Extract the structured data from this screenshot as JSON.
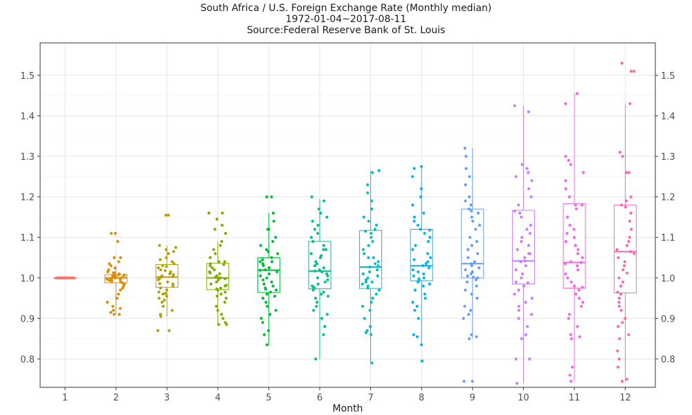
{
  "chart_data": {
    "type": "box",
    "title": "South Africa / U.S. Foreign Exchange Rate (Monthly median)",
    "subtitle": "1972-01-04~2017-08-11",
    "source": "Source:Federal Reserve Bank of St. Louis",
    "xlabel": "Month",
    "ylabel": "",
    "categories": [
      "1",
      "2",
      "3",
      "4",
      "5",
      "6",
      "7",
      "8",
      "9",
      "10",
      "11",
      "12"
    ],
    "ylim": [
      0.73,
      1.58
    ],
    "yticks": [
      0.8,
      0.9,
      1.0,
      1.1,
      1.2,
      1.3,
      1.4,
      1.5
    ],
    "ytick_labels": [
      "0.8",
      "0.9",
      "1.0",
      "1.1",
      "1.2",
      "1.3",
      "1.4",
      "1.5"
    ],
    "secondary_y_axis": true,
    "grid": true,
    "colors": [
      "#F8766D",
      "#DE8C00",
      "#B79F00",
      "#7CAE00",
      "#00BA38",
      "#00C08B",
      "#00BFC4",
      "#00B4F0",
      "#619CFF",
      "#C77CFF",
      "#F564E3",
      "#FF64B0"
    ],
    "boxes": [
      {
        "month": "1",
        "min": 1.0,
        "q1": 1.0,
        "median": 1.0,
        "q3": 1.0,
        "max": 1.0
      },
      {
        "month": "2",
        "min": 0.91,
        "q1": 0.988,
        "median": 1.0,
        "q3": 1.008,
        "max": 1.03
      },
      {
        "month": "3",
        "min": 0.905,
        "q1": 0.977,
        "median": 1.002,
        "q3": 1.033,
        "max": 1.08
      },
      {
        "month": "4",
        "min": 0.885,
        "q1": 0.971,
        "median": 1.0,
        "q3": 1.036,
        "max": 1.09
      },
      {
        "month": "5",
        "min": 0.835,
        "q1": 0.964,
        "median": 1.019,
        "q3": 1.05,
        "max": 1.16
      },
      {
        "month": "6",
        "min": 0.8,
        "q1": 0.973,
        "median": 1.017,
        "q3": 1.09,
        "max": 1.195
      },
      {
        "month": "7",
        "min": 0.79,
        "q1": 0.974,
        "median": 1.027,
        "q3": 1.117,
        "max": 1.265
      },
      {
        "month": "8",
        "min": 0.835,
        "q1": 0.993,
        "median": 1.03,
        "q3": 1.12,
        "max": 1.275
      },
      {
        "month": "9",
        "min": 0.85,
        "q1": 1.0,
        "median": 1.035,
        "q3": 1.17,
        "max": 1.32
      },
      {
        "month": "10",
        "min": 0.74,
        "q1": 0.985,
        "median": 1.042,
        "q3": 1.167,
        "max": 1.425
      },
      {
        "month": "11",
        "min": 0.745,
        "q1": 0.975,
        "median": 1.038,
        "q3": 1.183,
        "max": 1.455
      },
      {
        "month": "12",
        "min": 0.745,
        "q1": 0.963,
        "median": 1.065,
        "q3": 1.18,
        "max": 1.43
      }
    ],
    "points": [
      {
        "month": "1",
        "values": [
          1.0,
          1.0,
          1.0,
          1.0,
          1.0,
          1.0,
          1.0,
          1.0,
          1.0,
          1.0,
          1.0,
          1.0,
          1.0,
          1.0,
          1.0,
          1.0,
          1.0,
          1.0,
          1.0,
          1.0,
          1.0,
          1.0,
          1.0,
          1.0,
          1.0,
          1.0,
          1.0,
          1.0,
          1.0,
          1.0,
          1.0,
          1.0,
          1.0,
          1.0,
          1.0,
          1.0,
          1.0,
          1.0,
          1.0,
          1.0,
          1.0,
          1.0,
          1.0,
          1.0,
          1.0,
          1.0
        ]
      },
      {
        "month": "2",
        "values": [
          1.11,
          1.11,
          1.09,
          1.05,
          1.05,
          1.04,
          1.035,
          1.03,
          1.025,
          1.02,
          1.015,
          1.012,
          1.01,
          1.008,
          1.006,
          1.005,
          1.004,
          1.003,
          1.002,
          1.001,
          1.0,
          1.0,
          0.999,
          0.998,
          0.996,
          0.994,
          0.992,
          0.99,
          0.988,
          0.985,
          0.98,
          0.975,
          0.97,
          0.96,
          0.95,
          0.94,
          0.93,
          0.92,
          0.915,
          0.91,
          0.91,
          0.925,
          1.0,
          1.007,
          0.997,
          1.013
        ]
      },
      {
        "month": "3",
        "values": [
          1.155,
          1.155,
          1.08,
          1.075,
          1.07,
          1.065,
          1.06,
          1.05,
          1.045,
          1.04,
          1.035,
          1.03,
          1.025,
          1.02,
          1.015,
          1.012,
          1.01,
          1.008,
          1.005,
          1.003,
          1.002,
          1.0,
          0.998,
          0.995,
          0.99,
          0.985,
          0.98,
          0.975,
          0.97,
          0.965,
          0.96,
          0.955,
          0.95,
          0.945,
          0.94,
          0.93,
          0.92,
          0.91,
          0.905,
          0.87,
          0.87,
          1.001,
          1.018,
          0.986,
          1.028,
          0.962
        ]
      },
      {
        "month": "4",
        "values": [
          1.16,
          1.16,
          1.145,
          1.13,
          1.12,
          1.11,
          1.09,
          1.08,
          1.07,
          1.06,
          1.05,
          1.04,
          1.035,
          1.03,
          1.025,
          1.02,
          1.015,
          1.01,
          1.005,
          1.002,
          1.0,
          0.998,
          0.995,
          0.99,
          0.985,
          0.98,
          0.975,
          0.97,
          0.965,
          0.96,
          0.955,
          0.95,
          0.94,
          0.93,
          0.92,
          0.91,
          0.9,
          0.89,
          0.885,
          0.885,
          1.0,
          1.033,
          0.973,
          1.012,
          0.982,
          1.04
        ]
      },
      {
        "month": "5",
        "values": [
          1.2,
          1.2,
          1.16,
          1.14,
          1.12,
          1.12,
          1.1,
          1.09,
          1.08,
          1.07,
          1.065,
          1.06,
          1.05,
          1.045,
          1.04,
          1.035,
          1.03,
          1.025,
          1.02,
          1.019,
          1.015,
          1.01,
          1.005,
          1.0,
          0.995,
          0.99,
          0.985,
          0.98,
          0.975,
          0.97,
          0.965,
          0.96,
          0.955,
          0.95,
          0.94,
          0.93,
          0.92,
          0.91,
          0.9,
          0.89,
          0.87,
          0.86,
          0.835,
          1.025,
          0.972,
          1.04
        ]
      },
      {
        "month": "6",
        "values": [
          1.2,
          1.19,
          1.17,
          1.16,
          1.15,
          1.14,
          1.13,
          1.12,
          1.11,
          1.1,
          1.09,
          1.08,
          1.07,
          1.06,
          1.05,
          1.04,
          1.035,
          1.03,
          1.025,
          1.02,
          1.017,
          1.015,
          1.01,
          1.005,
          1.0,
          0.995,
          0.99,
          0.985,
          0.98,
          0.975,
          0.97,
          0.965,
          0.96,
          0.955,
          0.95,
          0.94,
          0.93,
          0.92,
          0.91,
          0.9,
          0.88,
          0.86,
          0.8,
          1.055,
          0.978,
          1.07
        ]
      },
      {
        "month": "7",
        "values": [
          1.265,
          1.26,
          1.23,
          1.21,
          1.19,
          1.17,
          1.15,
          1.14,
          1.13,
          1.12,
          1.11,
          1.1,
          1.09,
          1.08,
          1.07,
          1.06,
          1.05,
          1.04,
          1.035,
          1.03,
          1.027,
          1.02,
          1.015,
          1.01,
          1.005,
          1.0,
          0.995,
          0.99,
          0.985,
          0.98,
          0.975,
          0.97,
          0.96,
          0.95,
          0.94,
          0.93,
          0.92,
          0.9,
          0.88,
          0.87,
          0.865,
          0.86,
          0.79,
          1.115,
          0.99,
          1.05
        ]
      },
      {
        "month": "8",
        "values": [
          1.275,
          1.27,
          1.25,
          1.22,
          1.2,
          1.18,
          1.16,
          1.15,
          1.14,
          1.13,
          1.12,
          1.11,
          1.1,
          1.09,
          1.08,
          1.07,
          1.06,
          1.05,
          1.04,
          1.035,
          1.03,
          1.025,
          1.02,
          1.015,
          1.01,
          1.005,
          1.0,
          0.995,
          0.99,
          0.985,
          0.98,
          0.97,
          0.96,
          0.95,
          0.94,
          0.93,
          0.92,
          0.9,
          0.86,
          0.855,
          0.835,
          0.795,
          0.795,
          1.118,
          1.045,
          0.998
        ]
      },
      {
        "month": "9",
        "values": [
          1.32,
          1.3,
          1.27,
          1.25,
          1.23,
          1.2,
          1.19,
          1.18,
          1.17,
          1.16,
          1.15,
          1.14,
          1.13,
          1.12,
          1.1,
          1.09,
          1.08,
          1.07,
          1.06,
          1.05,
          1.04,
          1.035,
          1.03,
          1.025,
          1.02,
          1.015,
          1.01,
          1.005,
          1.0,
          0.995,
          0.99,
          0.98,
          0.97,
          0.96,
          0.95,
          0.93,
          0.92,
          0.91,
          0.9,
          0.86,
          0.855,
          0.85,
          0.745,
          0.745,
          1.165,
          1.002
        ]
      },
      {
        "month": "10",
        "values": [
          1.425,
          1.41,
          1.28,
          1.27,
          1.26,
          1.25,
          1.24,
          1.22,
          1.2,
          1.18,
          1.16,
          1.15,
          1.13,
          1.12,
          1.11,
          1.1,
          1.09,
          1.08,
          1.07,
          1.06,
          1.05,
          1.042,
          1.04,
          1.03,
          1.02,
          1.01,
          1.0,
          0.99,
          0.98,
          0.97,
          0.96,
          0.95,
          0.94,
          0.93,
          0.92,
          0.91,
          0.9,
          0.88,
          0.86,
          0.85,
          0.8,
          0.8,
          0.74,
          1.165,
          0.988,
          1.06
        ]
      },
      {
        "month": "11",
        "values": [
          1.455,
          1.43,
          1.3,
          1.29,
          1.28,
          1.26,
          1.24,
          1.22,
          1.2,
          1.18,
          1.17,
          1.15,
          1.13,
          1.12,
          1.11,
          1.1,
          1.09,
          1.08,
          1.07,
          1.06,
          1.05,
          1.04,
          1.038,
          1.03,
          1.02,
          1.01,
          1.0,
          0.99,
          0.98,
          0.97,
          0.96,
          0.95,
          0.94,
          0.93,
          0.91,
          0.9,
          0.88,
          0.86,
          0.855,
          0.85,
          0.78,
          0.76,
          0.745,
          1.18,
          0.977,
          1.035
        ]
      },
      {
        "month": "12",
        "values": [
          1.53,
          1.53,
          1.51,
          1.51,
          1.43,
          1.31,
          1.3,
          1.26,
          1.26,
          1.2,
          1.19,
          1.18,
          1.16,
          1.14,
          1.12,
          1.1,
          1.09,
          1.08,
          1.07,
          1.065,
          1.06,
          1.05,
          1.04,
          1.03,
          1.02,
          1.0,
          0.99,
          0.98,
          0.96,
          0.95,
          0.94,
          0.93,
          0.92,
          0.9,
          0.89,
          0.88,
          0.86,
          0.85,
          0.82,
          0.8,
          0.78,
          0.75,
          0.745,
          1.175,
          0.965,
          1.012
        ]
      }
    ]
  }
}
